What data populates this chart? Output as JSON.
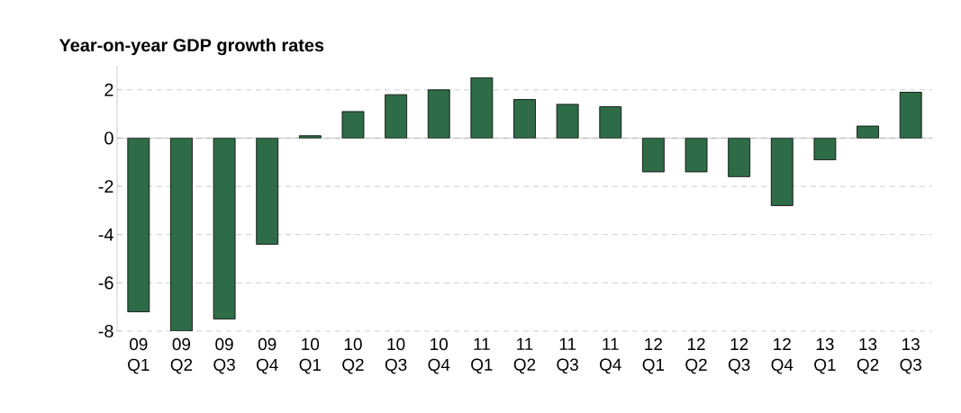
{
  "chart_data": {
    "type": "bar",
    "title": "Year-on-year GDP growth rates",
    "categories": [
      "09 Q1",
      "09 Q2",
      "09 Q3",
      "09 Q4",
      "10 Q1",
      "10 Q2",
      "10 Q3",
      "10 Q4",
      "11 Q1",
      "11 Q2",
      "11 Q3",
      "11 Q4",
      "12 Q1",
      "12 Q2",
      "12 Q3",
      "12 Q4",
      "13 Q1",
      "13 Q2",
      "13 Q3"
    ],
    "values": [
      -7.2,
      -8.0,
      -7.5,
      -4.4,
      0.1,
      1.1,
      1.8,
      2.0,
      2.5,
      1.6,
      1.4,
      1.3,
      -1.4,
      -1.4,
      -1.6,
      -2.8,
      -0.9,
      0.5,
      1.9
    ],
    "color": "#2e6b47",
    "ylim": [
      -8,
      3
    ],
    "yticks": [
      -8,
      -6,
      -4,
      -2,
      0,
      2
    ],
    "grid": "y"
  }
}
